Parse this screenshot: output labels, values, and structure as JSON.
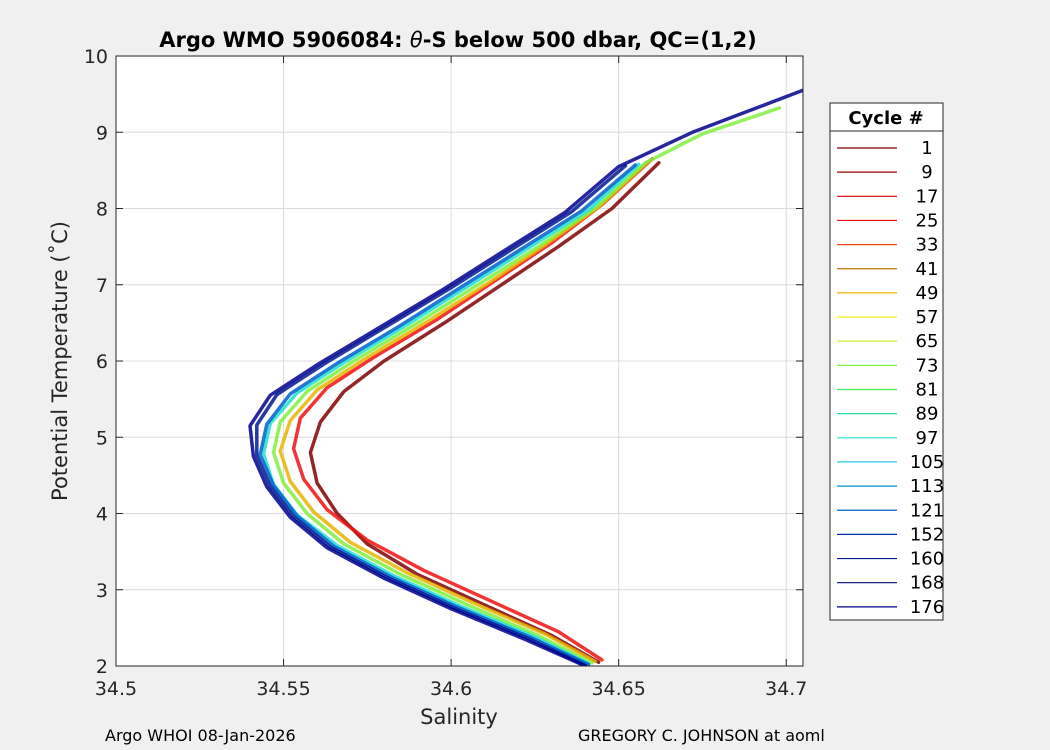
{
  "chart_data": {
    "type": "line",
    "title_prefix": "Argo WMO 5906084: ",
    "title_theta": "θ",
    "title_suffix": "-S below 500 dbar,  QC=(1,2)",
    "xlabel": "Salinity",
    "ylabel": "Potential Temperature (˚C)",
    "xlim": [
      34.5,
      34.705
    ],
    "ylim": [
      2,
      10
    ],
    "xticks": [
      34.5,
      34.55,
      34.6,
      34.65,
      34.7
    ],
    "xtick_labels": [
      "34.5",
      "34.55",
      "34.6",
      "34.65",
      "34.7"
    ],
    "yticks": [
      2,
      3,
      4,
      5,
      6,
      7,
      8,
      9,
      10
    ],
    "ytick_labels": [
      "2",
      "3",
      "4",
      "5",
      "6",
      "7",
      "8",
      "9",
      "10"
    ],
    "grid": true,
    "legend": {
      "title": "Cycle #",
      "position": "outside-right",
      "entries": [
        {
          "label": "1",
          "color": "#800000"
        },
        {
          "label": "9",
          "color": "#9a0000"
        },
        {
          "label": "17",
          "color": "#d40000"
        },
        {
          "label": "25",
          "color": "#f01010"
        },
        {
          "label": "33",
          "color": "#f04a1e"
        },
        {
          "label": "41",
          "color": "#c07800"
        },
        {
          "label": "49",
          "color": "#e8b400"
        },
        {
          "label": "57",
          "color": "#f4f000"
        },
        {
          "label": "65",
          "color": "#c8f020"
        },
        {
          "label": "73",
          "color": "#80f040"
        },
        {
          "label": "81",
          "color": "#40e860"
        },
        {
          "label": "89",
          "color": "#20e0a0"
        },
        {
          "label": "97",
          "color": "#20e0d0"
        },
        {
          "label": "105",
          "color": "#10c0e0"
        },
        {
          "label": "113",
          "color": "#0090c8"
        },
        {
          "label": "121",
          "color": "#0060d0"
        },
        {
          "label": "152",
          "color": "#0030b0"
        },
        {
          "label": "160",
          "color": "#001890"
        },
        {
          "label": "168",
          "color": "#000c70"
        },
        {
          "label": "176",
          "color": "#00008f"
        }
      ]
    },
    "series": [
      {
        "name": "1",
        "color": "#800000",
        "x": [
          34.644,
          34.63,
          34.61,
          34.59,
          34.575,
          34.566,
          34.56,
          34.558,
          34.561,
          34.568,
          34.58,
          34.598,
          34.615,
          34.632,
          34.648,
          34.662
        ],
        "y": [
          2.05,
          2.4,
          2.8,
          3.2,
          3.6,
          4.0,
          4.4,
          4.8,
          5.2,
          5.6,
          6.0,
          6.5,
          7.0,
          7.5,
          8.0,
          8.6
        ]
      },
      {
        "name": "25",
        "color": "#f01010",
        "x": [
          34.645,
          34.632,
          34.612,
          34.592,
          34.575,
          34.563,
          34.556,
          34.553,
          34.555,
          34.563,
          34.577,
          34.596,
          34.613,
          34.63,
          34.645,
          34.66
        ],
        "y": [
          2.08,
          2.45,
          2.85,
          3.25,
          3.65,
          4.05,
          4.45,
          4.85,
          5.25,
          5.65,
          6.05,
          6.55,
          7.05,
          7.55,
          8.05,
          8.65
        ]
      },
      {
        "name": "49",
        "color": "#e8b400",
        "x": [
          34.643,
          34.628,
          34.607,
          34.587,
          34.57,
          34.559,
          34.552,
          34.549,
          34.552,
          34.56,
          34.574,
          34.593,
          34.611,
          34.628,
          34.644,
          34.659
        ],
        "y": [
          2.06,
          2.42,
          2.82,
          3.22,
          3.62,
          4.02,
          4.42,
          4.82,
          5.22,
          5.62,
          6.02,
          6.52,
          7.02,
          7.52,
          8.02,
          8.62
        ]
      },
      {
        "name": "73",
        "color": "#80f040",
        "x": [
          34.642,
          34.626,
          34.605,
          34.585,
          34.568,
          34.557,
          34.55,
          34.547,
          34.549,
          34.557,
          34.571,
          34.59,
          34.608,
          34.626,
          34.643,
          34.658,
          34.675,
          34.69,
          34.698
        ],
        "y": [
          2.04,
          2.4,
          2.8,
          3.2,
          3.6,
          4.0,
          4.4,
          4.8,
          5.2,
          5.6,
          6.0,
          6.5,
          7.0,
          7.5,
          8.0,
          8.6,
          8.98,
          9.2,
          9.32
        ]
      },
      {
        "name": "97",
        "color": "#20e0d0",
        "x": [
          34.641,
          34.625,
          34.603,
          34.583,
          34.566,
          34.554,
          34.547,
          34.544,
          34.546,
          34.554,
          34.568,
          34.587,
          34.605,
          34.623,
          34.641,
          34.656
        ],
        "y": [
          2.03,
          2.38,
          2.78,
          3.18,
          3.58,
          3.98,
          4.38,
          4.78,
          5.18,
          5.58,
          5.98,
          6.48,
          6.98,
          7.48,
          7.98,
          8.58
        ]
      },
      {
        "name": "121",
        "color": "#0060d0",
        "x": [
          34.641,
          34.624,
          34.602,
          34.582,
          34.565,
          34.554,
          34.547,
          34.543,
          34.545,
          34.552,
          34.566,
          34.585,
          34.603,
          34.621,
          34.639,
          34.655
        ],
        "y": [
          2.02,
          2.37,
          2.77,
          3.17,
          3.57,
          3.97,
          4.37,
          4.77,
          5.17,
          5.57,
          5.97,
          6.47,
          6.97,
          7.47,
          7.97,
          8.57
        ]
      },
      {
        "name": "160",
        "color": "#001890",
        "x": [
          34.64,
          34.623,
          34.601,
          34.581,
          34.564,
          34.553,
          34.546,
          34.542,
          34.542,
          34.548,
          34.562,
          34.581,
          34.6,
          34.618,
          34.636,
          34.652
        ],
        "y": [
          2.01,
          2.36,
          2.76,
          3.16,
          3.56,
          3.96,
          4.36,
          4.76,
          5.16,
          5.56,
          5.96,
          6.46,
          6.96,
          7.46,
          7.96,
          8.56
        ]
      },
      {
        "name": "176",
        "color": "#00008f",
        "x": [
          34.64,
          34.622,
          34.6,
          34.58,
          34.563,
          34.552,
          34.545,
          34.541,
          34.54,
          34.546,
          34.56,
          34.579,
          34.598,
          34.616,
          34.634,
          34.65,
          34.672,
          34.69,
          34.705
        ],
        "y": [
          2.0,
          2.35,
          2.75,
          3.15,
          3.55,
          3.95,
          4.35,
          4.75,
          5.15,
          5.55,
          5.95,
          6.45,
          6.95,
          7.45,
          7.95,
          8.55,
          9.0,
          9.3,
          9.55
        ]
      }
    ]
  },
  "footer": {
    "left": "Argo WHOI 08-Jan-2026",
    "right": "GREGORY C. JOHNSON at aoml"
  }
}
